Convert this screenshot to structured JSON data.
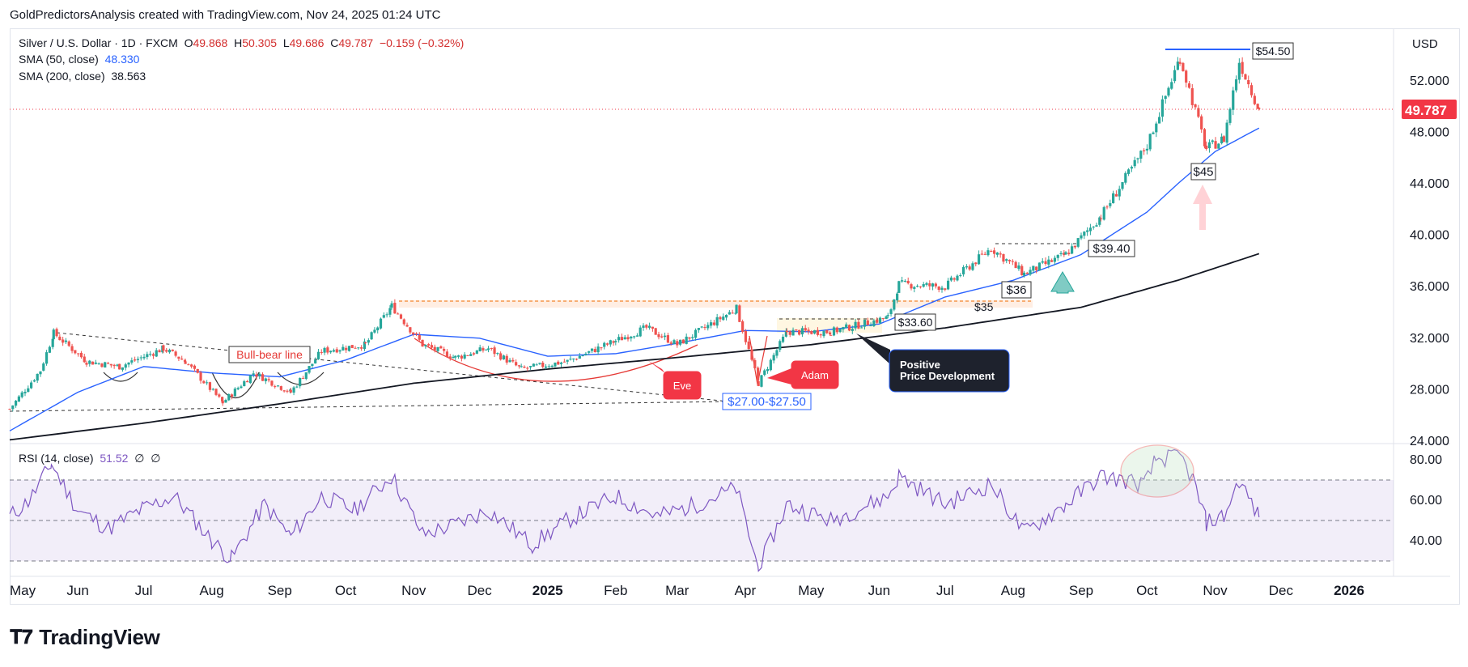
{
  "header": {
    "credit": "GoldPredictorsAnalysis created with TradingView.com, Nov 24, 2025 01:24 UTC"
  },
  "legend": {
    "symbol": "Silver / U.S. Dollar · 1D · FXCM",
    "open_label": "O",
    "open": "49.868",
    "high_label": "H",
    "high": "50.305",
    "low_label": "L",
    "low": "49.686",
    "close_label": "C",
    "close": "49.787",
    "change": "−0.159 (−0.32%)",
    "sma50_label": "SMA (50, close)",
    "sma50_value": "48.330",
    "sma200_label": "SMA (200, close)",
    "sma200_value": "38.563",
    "rsi_label": "RSI (14, close)",
    "rsi_value": "51.52",
    "rsi_extra1": "∅",
    "rsi_extra2": "∅"
  },
  "currency": "USD",
  "last_price": "49.787",
  "colors": {
    "up": "#26a69a",
    "down": "#ef5350",
    "sma50": "#2962ff",
    "sma200": "#131722",
    "rsi": "#7e57c2",
    "price_label": "#f23645"
  },
  "annotations": {
    "bull_bear": "Bull-bear line",
    "eve": "Eve",
    "adam": "Adam",
    "support_range": "$27.00-$27.50",
    "level_3360": "$33.60",
    "level_35": "$35",
    "level_36": "$36",
    "level_3940": "$39.40",
    "level_45": "$45",
    "level_5450": "$54.50",
    "positive_line1": "Positive",
    "positive_line2": "Price Development"
  },
  "footer": {
    "logo_text": "TradingView",
    "logo_icon": "tradingview-logo-icon"
  },
  "chart_data": {
    "type": "candlestick",
    "ylim": [
      24,
      56
    ],
    "yticks": [
      "24.000",
      "28.000",
      "32.000",
      "36.000",
      "40.000",
      "44.000",
      "48.000",
      "52.000"
    ],
    "xticks": [
      "May",
      "Jun",
      "Jul",
      "Aug",
      "Sep",
      "Oct",
      "Nov",
      "Dec",
      "2025",
      "Feb",
      "Mar",
      "Apr",
      "May",
      "Jun",
      "Jul",
      "Aug",
      "Sep",
      "Oct",
      "Nov",
      "Dec",
      "2026"
    ],
    "price_path": [
      [
        "2024-05-01",
        26.5
      ],
      [
        "2024-05-15",
        29.5
      ],
      [
        "2024-05-21",
        32.4
      ],
      [
        "2024-06-05",
        30.2
      ],
      [
        "2024-06-20",
        29.8
      ],
      [
        "2024-07-10",
        31.2
      ],
      [
        "2024-07-20",
        30.2
      ],
      [
        "2024-08-06",
        27.0
      ],
      [
        "2024-08-20",
        29.3
      ],
      [
        "2024-09-06",
        27.8
      ],
      [
        "2024-09-20",
        31.0
      ],
      [
        "2024-10-10",
        31.5
      ],
      [
        "2024-10-22",
        34.5
      ],
      [
        "2024-11-05",
        31.5
      ],
      [
        "2024-11-20",
        30.5
      ],
      [
        "2024-12-05",
        31.2
      ],
      [
        "2024-12-20",
        29.6
      ],
      [
        "2025-01-10",
        30.2
      ],
      [
        "2025-02-01",
        31.8
      ],
      [
        "2025-02-15",
        32.8
      ],
      [
        "2025-03-01",
        31.5
      ],
      [
        "2025-03-28",
        34.3
      ],
      [
        "2025-04-07",
        28.5
      ],
      [
        "2025-04-20",
        32.5
      ],
      [
        "2025-05-10",
        32.5
      ],
      [
        "2025-06-05",
        33.6
      ],
      [
        "2025-06-10",
        36.2
      ],
      [
        "2025-07-01",
        36.0
      ],
      [
        "2025-07-22",
        39.0
      ],
      [
        "2025-08-06",
        37.0
      ],
      [
        "2025-08-25",
        38.5
      ],
      [
        "2025-09-10",
        41.5
      ],
      [
        "2025-10-01",
        47.0
      ],
      [
        "2025-10-16",
        53.8
      ],
      [
        "2025-10-28",
        46.7
      ],
      [
        "2025-11-05",
        47.5
      ],
      [
        "2025-11-12",
        53.5
      ],
      [
        "2025-11-21",
        49.8
      ]
    ],
    "sma50": [
      [
        "2024-05-01",
        24.8
      ],
      [
        "2024-06-01",
        27.8
      ],
      [
        "2024-07-01",
        29.8
      ],
      [
        "2024-08-01",
        29.3
      ],
      [
        "2024-09-01",
        29.0
      ],
      [
        "2024-10-01",
        30.3
      ],
      [
        "2024-11-01",
        32.3
      ],
      [
        "2024-12-01",
        32.0
      ],
      [
        "2025-01-01",
        30.6
      ],
      [
        "2025-02-01",
        30.8
      ],
      [
        "2025-03-01",
        31.6
      ],
      [
        "2025-04-01",
        32.6
      ],
      [
        "2025-05-01",
        32.5
      ],
      [
        "2025-06-01",
        33.1
      ],
      [
        "2025-07-01",
        35.2
      ],
      [
        "2025-08-01",
        36.5
      ],
      [
        "2025-09-01",
        38.5
      ],
      [
        "2025-10-01",
        41.8
      ],
      [
        "2025-10-15",
        44.0
      ],
      [
        "2025-11-01",
        46.5
      ],
      [
        "2025-11-21",
        48.33
      ]
    ],
    "sma200": [
      [
        "2024-05-01",
        24.1
      ],
      [
        "2024-07-01",
        25.4
      ],
      [
        "2024-09-01",
        26.9
      ],
      [
        "2024-11-01",
        28.5
      ],
      [
        "2025-01-01",
        29.6
      ],
      [
        "2025-03-01",
        30.5
      ],
      [
        "2025-05-01",
        31.5
      ],
      [
        "2025-07-01",
        32.8
      ],
      [
        "2025-09-01",
        34.4
      ],
      [
        "2025-10-15",
        36.5
      ],
      [
        "2025-11-21",
        38.563
      ]
    ],
    "rsi": {
      "ylim": [
        24,
        88
      ],
      "yticks": [
        "40.00",
        "60.00",
        "80.00"
      ],
      "bands": [
        30,
        50,
        70
      ],
      "values": [
        [
          "2024-05-01",
          52
        ],
        [
          "2024-05-10",
          60
        ],
        [
          "2024-05-20",
          78
        ],
        [
          "2024-06-01",
          55
        ],
        [
          "2024-06-15",
          46
        ],
        [
          "2024-07-01",
          56
        ],
        [
          "2024-07-15",
          62
        ],
        [
          "2024-08-01",
          40
        ],
        [
          "2024-08-10",
          31
        ],
        [
          "2024-08-25",
          58
        ],
        [
          "2024-09-06",
          42
        ],
        [
          "2024-09-20",
          62
        ],
        [
          "2024-10-05",
          55
        ],
        [
          "2024-10-22",
          72
        ],
        [
          "2024-11-05",
          43
        ],
        [
          "2024-11-20",
          48
        ],
        [
          "2024-12-05",
          55
        ],
        [
          "2024-12-25",
          38
        ],
        [
          "2025-01-10",
          50
        ],
        [
          "2025-02-01",
          62
        ],
        [
          "2025-02-20",
          52
        ],
        [
          "2025-03-10",
          58
        ],
        [
          "2025-03-28",
          66
        ],
        [
          "2025-04-07",
          26
        ],
        [
          "2025-04-20",
          58
        ],
        [
          "2025-05-10",
          50
        ],
        [
          "2025-06-05",
          62
        ],
        [
          "2025-06-10",
          72
        ],
        [
          "2025-07-01",
          58
        ],
        [
          "2025-07-22",
          68
        ],
        [
          "2025-08-06",
          44
        ],
        [
          "2025-08-25",
          58
        ],
        [
          "2025-09-10",
          72
        ],
        [
          "2025-09-30",
          68
        ],
        [
          "2025-10-05",
          80
        ],
        [
          "2025-10-16",
          82
        ],
        [
          "2025-10-22",
          70
        ],
        [
          "2025-10-28",
          49
        ],
        [
          "2025-11-05",
          52
        ],
        [
          "2025-11-12",
          70
        ],
        [
          "2025-11-21",
          51.52
        ]
      ]
    },
    "horizontal_levels": [
      {
        "label": "$54.50",
        "value": 54.5,
        "from": "2025-10-10",
        "to": "2025-11-17"
      },
      {
        "label": "$39.40",
        "value": 39.4,
        "from": "2025-07-22",
        "to": "2025-09-05"
      },
      {
        "label": "$33.60",
        "value": 33.6,
        "from": "2025-04-20",
        "to": "2025-06-05"
      },
      {
        "label": "$35",
        "value": 35.0,
        "from": "2024-10-22",
        "to": "2025-08-15"
      }
    ]
  }
}
